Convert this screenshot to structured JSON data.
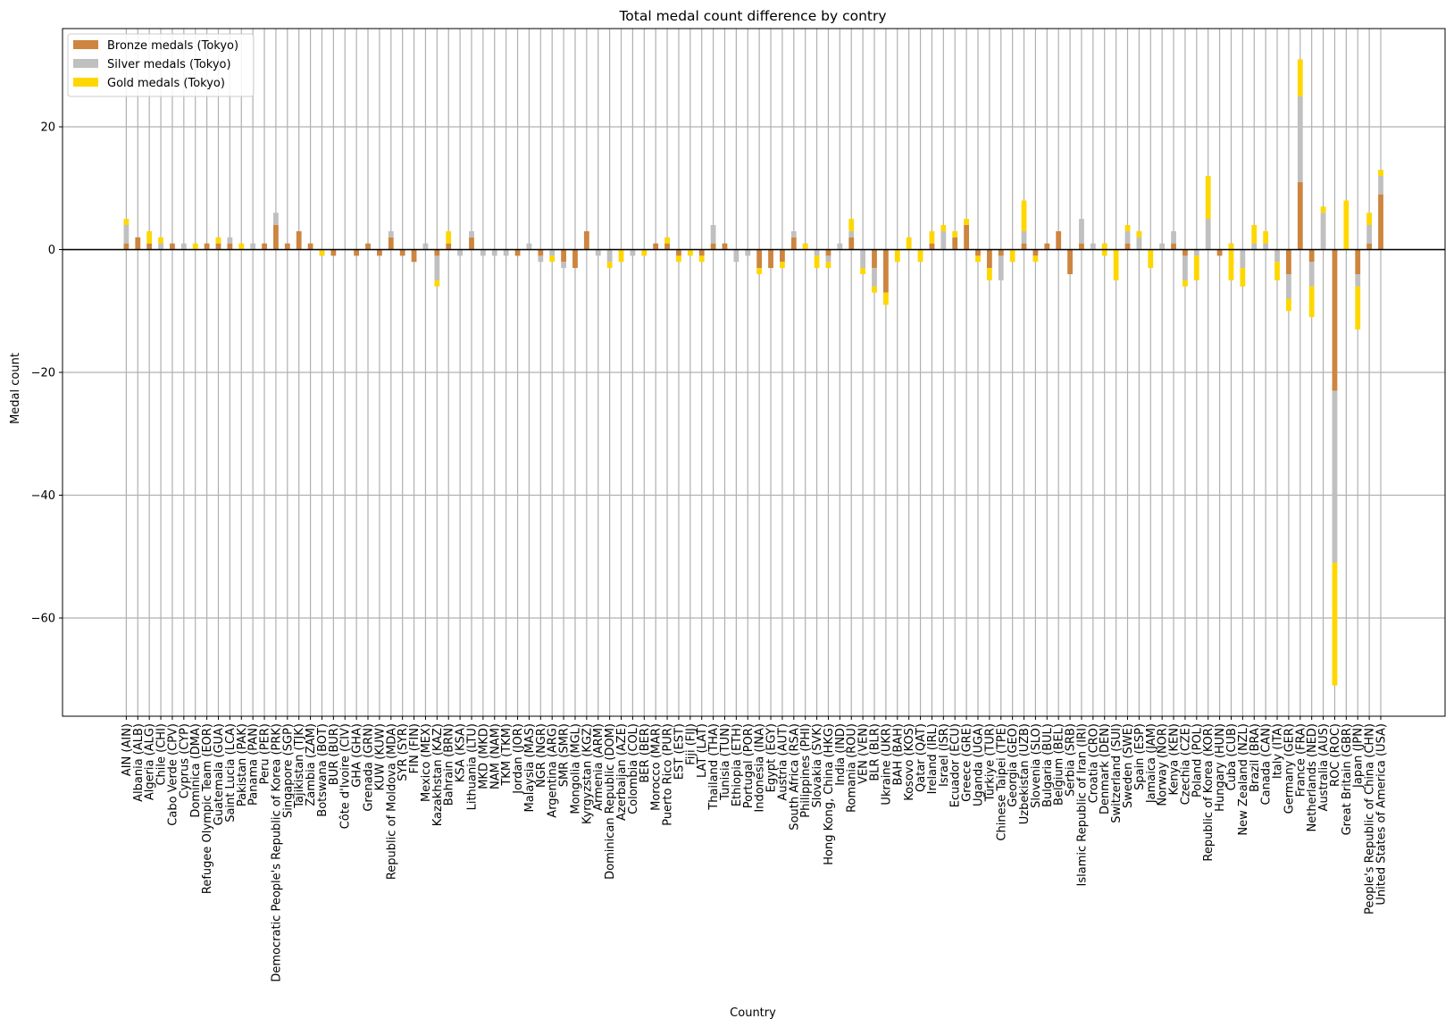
{
  "chart_data": {
    "type": "bar",
    "stacked": true,
    "title": "Total medal count difference by contry",
    "xlabel": "Country",
    "ylabel": "Medal count",
    "ylim": [
      -76,
      36
    ],
    "yticks": [
      20,
      0,
      -20,
      -40,
      -60
    ],
    "yticklabels": [
      "20",
      "0",
      "−20",
      "−40",
      "−60"
    ],
    "grid": true,
    "legend_position": "top-left",
    "categories": [
      "AIN (AIN)",
      "Albania (ALB)",
      "Algeria (ALG)",
      "Chile (CHI)",
      "Cabo Verde (CPV)",
      "Cyprus (CYP)",
      "Dominica (DMA)",
      "Refugee Olympic Team (EOR)",
      "Guatemala (GUA)",
      "Saint Lucia (LCA)",
      "Pakistan (PAK)",
      "Panama (PAN)",
      "Peru (PER)",
      "Democratic People's Republic of Korea (PRK)",
      "Singapore (SGP)",
      "Tajikistan (TJK)",
      "Zambia (ZAM)",
      "Botswana (BOT)",
      "BUR (BUR)",
      "Côte d'Ivoire (CIV)",
      "GHA (GHA)",
      "Grenada (GRN)",
      "KUW (KUW)",
      "Republic of Moldova (MDA)",
      "SYR (SYR)",
      "FIN (FIN)",
      "Mexico (MEX)",
      "Kazakhstan (KAZ)",
      "Bahrain (BRN)",
      "KSA (KSA)",
      "Lithuania (LTU)",
      "MKD (MKD)",
      "NAM (NAM)",
      "TKM (TKM)",
      "Jordan (JOR)",
      "Malaysia (MAS)",
      "NGR (NGR)",
      "Argentina (ARG)",
      "SMR (SMR)",
      "Mongolia (MGL)",
      "Kyrgyzstan (KGZ)",
      "Armenia (ARM)",
      "Dominican Republic (DOM)",
      "Azerbaijan (AZE)",
      "Colombia (COL)",
      "BER (BER)",
      "Morocco (MAR)",
      "Puerto Rico (PUR)",
      "EST (EST)",
      "Fiji (FIJ)",
      "LAT (LAT)",
      "Thailand (THA)",
      "Tunisia (TUN)",
      "Ethiopia (ETH)",
      "Portugal (POR)",
      "Indonesia (INA)",
      "Egypt (EGY)",
      "Austria (AUT)",
      "South Africa (RSA)",
      "Philippines (PHI)",
      "Slovakia (SVK)",
      "Hong Kong, China (HKG)",
      "India (IND)",
      "Romania (ROU)",
      "VEN (VEN)",
      "BLR (BLR)",
      "Ukraine (UKR)",
      "BAH (BAH)",
      "Kosovo (KOS)",
      "Qatar (QAT)",
      "Ireland (IRL)",
      "Israel (ISR)",
      "Ecuador (ECU)",
      "Greece (GRE)",
      "Uganda (UGA)",
      "Türkiye (TUR)",
      "Chinese Taipei (TPE)",
      "Georgia (GEO)",
      "Uzbekistan (UZB)",
      "Slovenia (SLO)",
      "Bulgaria (BUL)",
      "Belgium (BEL)",
      "Serbia (SRB)",
      "Islamic Republic of Iran (IRI)",
      "Croatia (CRO)",
      "Denmark (DEN)",
      "Switzerland (SUI)",
      "Sweden (SWE)",
      "Spain (ESP)",
      "Jamaica (JAM)",
      "Norway (NOR)",
      "Kenya (KEN)",
      "Czechia (CZE)",
      "Poland (POL)",
      "Republic of Korea (KOR)",
      "Hungary (HUN)",
      "Cuba (CUB)",
      "New Zealand (NZL)",
      "Brazil (BRA)",
      "Canada (CAN)",
      "Italy (ITA)",
      "Germany (GER)",
      "France (FRA)",
      "Netherlands (NED)",
      "Australia (AUS)",
      "ROC (ROC)",
      "Great Britain (GBR)",
      "Japan (JPN)",
      "People's Republic of China (CHN)",
      "United States of America (USA)"
    ],
    "series": [
      {
        "name": "Bronze medals (Tokyo)",
        "color": "#cd853f",
        "values": [
          1,
          2,
          1,
          0,
          1,
          0,
          0,
          1,
          1,
          1,
          0,
          0,
          1,
          4,
          1,
          3,
          1,
          0,
          -1,
          0,
          -1,
          1,
          -1,
          2,
          -1,
          -2,
          0,
          -1,
          1,
          0,
          2,
          0,
          0,
          0,
          -1,
          0,
          -1,
          0,
          -2,
          -3,
          3,
          0,
          0,
          0,
          0,
          0,
          1,
          1,
          -1,
          0,
          -1,
          1,
          1,
          0,
          0,
          -3,
          -3,
          -2,
          2,
          0,
          0,
          -1,
          0,
          2,
          0,
          -3,
          -7,
          0,
          0,
          0,
          1,
          0,
          2,
          4,
          -1,
          -3,
          -1,
          0,
          1,
          -1,
          1,
          3,
          -4,
          1,
          0,
          0,
          0,
          1,
          0,
          0,
          0,
          1,
          -1,
          0,
          0,
          -1,
          0,
          0,
          0,
          0,
          0,
          -4,
          11,
          -2,
          0,
          -23,
          0,
          -4,
          1,
          9
        ]
      },
      {
        "name": "Silver medals (Tokyo)",
        "color": "#c0c0c0",
        "values": [
          3,
          0,
          0,
          1,
          0,
          1,
          0,
          0,
          0,
          1,
          0,
          1,
          0,
          2,
          0,
          0,
          0,
          -1,
          0,
          0,
          0,
          0,
          0,
          1,
          0,
          0,
          1,
          -4,
          0,
          -1,
          1,
          -1,
          -1,
          -1,
          0,
          1,
          -1,
          -1,
          -1,
          0,
          0,
          -1,
          -2,
          0,
          -1,
          0,
          0,
          0,
          0,
          0,
          0,
          3,
          0,
          -2,
          -1,
          0,
          0,
          0,
          1,
          1,
          -1,
          -1,
          1,
          1,
          -3,
          -3,
          0,
          0,
          0,
          0,
          0,
          3,
          0,
          0,
          0,
          0,
          -4,
          0,
          2,
          0,
          0,
          0,
          0,
          4,
          1,
          1,
          0,
          2,
          3,
          0,
          1,
          2,
          -4,
          -1,
          5,
          0,
          1,
          -3,
          1,
          1,
          -2,
          -4,
          14,
          -4,
          6,
          -28,
          0,
          -2,
          3,
          3
        ]
      },
      {
        "name": "Gold medals (Tokyo)",
        "color": "#ffd700",
        "values": [
          1,
          0,
          2,
          1,
          0,
          0,
          1,
          0,
          1,
          0,
          1,
          0,
          0,
          0,
          0,
          0,
          0,
          1,
          0,
          0,
          0,
          0,
          0,
          0,
          0,
          0,
          0,
          -1,
          2,
          0,
          0,
          0,
          0,
          0,
          0,
          0,
          0,
          -1,
          0,
          0,
          0,
          0,
          -1,
          -2,
          0,
          -1,
          0,
          1,
          -1,
          -1,
          -1,
          0,
          0,
          0,
          0,
          -1,
          0,
          -1,
          0,
          -1,
          -2,
          -1,
          0,
          2,
          -1,
          -1,
          -2,
          -2,
          2,
          -2,
          2,
          1,
          1,
          1,
          -1,
          -2,
          0,
          -2,
          5,
          -1,
          0,
          0,
          0,
          0,
          0,
          -2,
          -5,
          1,
          -1,
          -3,
          0,
          0,
          -1,
          -4,
          7,
          0,
          -6,
          -3,
          3,
          2,
          -3,
          -2,
          6,
          -5,
          1,
          -20,
          8,
          -7,
          2,
          1
        ]
      }
    ]
  }
}
